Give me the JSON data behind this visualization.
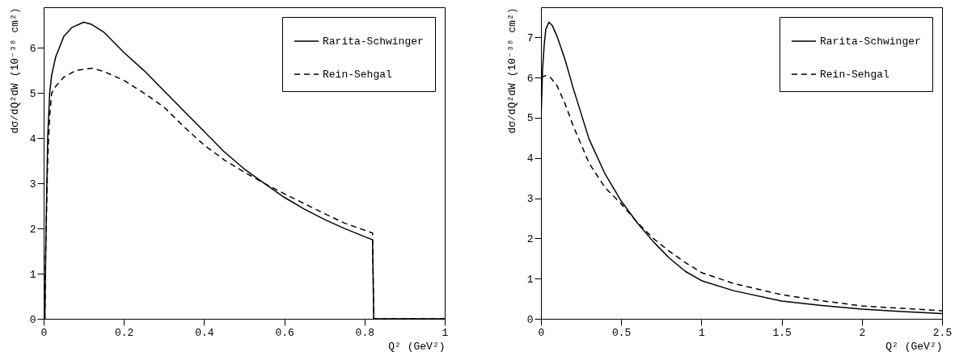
{
  "chart_data": [
    {
      "type": "line",
      "xlabel": "Q² (GeV²)",
      "ylabel": "dσ/dQ²dW (10⁻³⁸ cm²)",
      "xlim": [
        0,
        1
      ],
      "ylim": [
        0,
        6.9
      ],
      "xticks": [
        0,
        0.2,
        0.4,
        0.6,
        0.8,
        1
      ],
      "yticks": [
        0,
        1,
        2,
        3,
        4,
        5,
        6
      ],
      "grid": false,
      "legend": "top right",
      "series": [
        {
          "name": "Rarita-Schwinger",
          "color": "#000000",
          "line_style": "solid",
          "x": [
            0.003,
            0.006,
            0.01,
            0.015,
            0.02,
            0.03,
            0.05,
            0.07,
            0.1,
            0.12,
            0.15,
            0.2,
            0.25,
            0.3,
            0.35,
            0.4,
            0.45,
            0.5,
            0.55,
            0.6,
            0.65,
            0.7,
            0.75,
            0.82,
            0.823,
            1.0
          ],
          "values": [
            0,
            2,
            4,
            5,
            5.4,
            5.8,
            6.25,
            6.45,
            6.57,
            6.52,
            6.35,
            5.9,
            5.5,
            5.05,
            4.6,
            4.15,
            3.7,
            3.32,
            3.0,
            2.69,
            2.43,
            2.2,
            2.0,
            1.75,
            0,
            0
          ]
        },
        {
          "name": "Rein-Sehgal",
          "color": "#000000",
          "line_style": "dashed",
          "x": [
            0.003,
            0.005,
            0.01,
            0.015,
            0.02,
            0.03,
            0.05,
            0.08,
            0.12,
            0.15,
            0.2,
            0.25,
            0.3,
            0.35,
            0.4,
            0.45,
            0.5,
            0.55,
            0.6,
            0.65,
            0.7,
            0.75,
            0.82,
            0.823,
            1.0
          ],
          "values": [
            0,
            1.5,
            3.5,
            4.5,
            5.0,
            5.15,
            5.35,
            5.5,
            5.55,
            5.48,
            5.28,
            5.0,
            4.69,
            4.25,
            3.85,
            3.52,
            3.25,
            3.0,
            2.77,
            2.55,
            2.33,
            2.12,
            1.9,
            0,
            0
          ]
        }
      ]
    },
    {
      "type": "line",
      "xlabel": "Q² (GeV²)",
      "ylabel": "dσ/dQ²dW (10⁻³⁸ cm²)",
      "xlim": [
        0,
        2.5
      ],
      "ylim": [
        0,
        7.75
      ],
      "xticks": [
        0,
        0.5,
        1,
        1.5,
        2,
        2.5
      ],
      "yticks": [
        0,
        1,
        2,
        3,
        4,
        5,
        6,
        7
      ],
      "grid": false,
      "legend": "top right",
      "series": [
        {
          "name": "Rarita-Schwinger",
          "color": "#000000",
          "line_style": "solid",
          "x": [
            0,
            0.01,
            0.02,
            0.03,
            0.05,
            0.07,
            0.1,
            0.15,
            0.2,
            0.3,
            0.4,
            0.5,
            0.6,
            0.7,
            0.8,
            0.9,
            1.0,
            1.2,
            1.5,
            1.75,
            2.0,
            2.25,
            2.5
          ],
          "values": [
            4.9,
            6.2,
            6.8,
            7.2,
            7.38,
            7.3,
            7.03,
            6.45,
            5.75,
            4.47,
            3.6,
            2.93,
            2.39,
            1.92,
            1.51,
            1.18,
            0.95,
            0.7,
            0.44,
            0.33,
            0.24,
            0.18,
            0.13
          ]
        },
        {
          "name": "Rein-Sehgal",
          "color": "#000000",
          "line_style": "dashed",
          "x": [
            0,
            0.03,
            0.06,
            0.1,
            0.15,
            0.2,
            0.3,
            0.4,
            0.5,
            0.6,
            0.7,
            0.8,
            0.9,
            1.0,
            1.2,
            1.5,
            1.75,
            2.0,
            2.25,
            2.5
          ],
          "values": [
            6.0,
            6.05,
            6.0,
            5.8,
            5.35,
            4.81,
            3.87,
            3.26,
            2.86,
            2.4,
            2.0,
            1.68,
            1.4,
            1.15,
            0.88,
            0.6,
            0.45,
            0.32,
            0.26,
            0.2
          ]
        }
      ]
    }
  ]
}
